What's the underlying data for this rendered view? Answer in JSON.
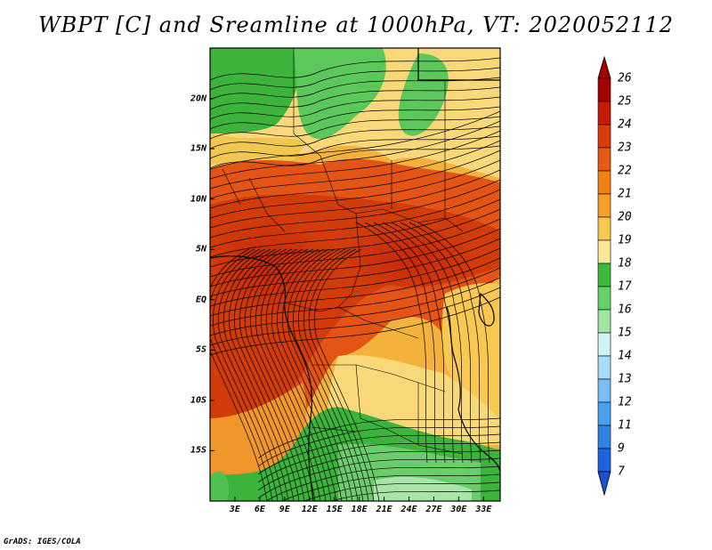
{
  "title": "WBPT [C] and Sreamline at 1000hPa, VT: 2020052112",
  "credit": "GrADS: IGES/COLA",
  "map": {
    "lat_labels": [
      "20N",
      "15N",
      "10N",
      "5N",
      "EQ",
      "5S",
      "10S",
      "15S"
    ],
    "lon_labels": [
      "3E",
      "6E",
      "9E",
      "12E",
      "15E",
      "18E",
      "21E",
      "24E",
      "27E",
      "30E",
      "33E"
    ],
    "lat_values": [
      20,
      15,
      10,
      5,
      0,
      -5,
      -10,
      -15
    ],
    "lon_values": [
      3,
      6,
      9,
      12,
      15,
      18,
      21,
      24,
      27,
      30,
      33
    ],
    "lat_range": [
      -20,
      25
    ],
    "lon_range": [
      0,
      35
    ]
  },
  "colorbar": {
    "labels": [
      "26",
      "25",
      "24",
      "23",
      "22",
      "21",
      "20",
      "19",
      "18",
      "17",
      "16",
      "15",
      "14",
      "13",
      "12",
      "11",
      "9",
      "7"
    ],
    "colors": [
      "#a50000",
      "#c81a00",
      "#dc3a0a",
      "#e85a14",
      "#f08214",
      "#f5a028",
      "#f8c850",
      "#fce898",
      "#3cba3c",
      "#68d068",
      "#a0e6a0",
      "#d2f4f0",
      "#a8dcf8",
      "#78bef4",
      "#4ba0ec",
      "#2d82e4",
      "#1e64dc"
    ],
    "tip_bottom_color": "#1e50d0",
    "tip_top_color": "#a50000"
  }
}
